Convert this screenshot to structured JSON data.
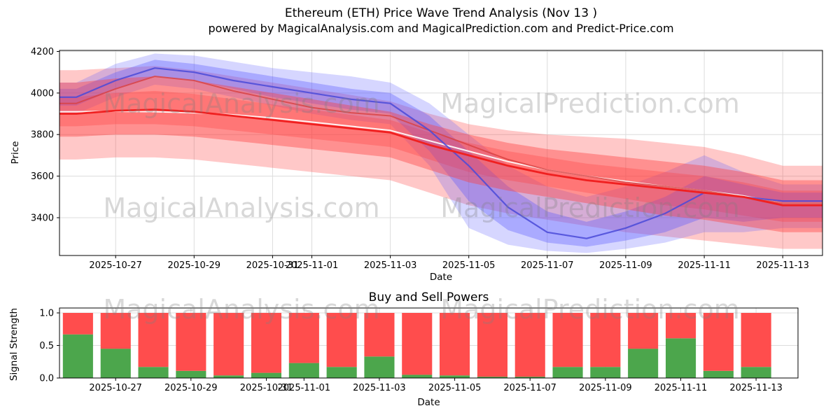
{
  "title": {
    "line1": "Ethereum (ETH) Price Wave Trend Analysis (Nov 13 )",
    "line2": "powered by MagicalAnalysis.com and MagicalPrediction.com and Predict-Price.com"
  },
  "watermarks": {
    "left_text": "MagicalAnalysis.com",
    "right_text": "MagicalPrediction.com"
  },
  "colors": {
    "grid": "#dcdcdc",
    "spine": "#000000",
    "band_red": "#ff3b3b",
    "band_blue": "#5a5aff",
    "line_red_main": "#f02020",
    "line_red_secondary": "#d84040",
    "line_blue": "#4a4ad8",
    "line_white": "#ffffff",
    "bar_green": "#4ca64c",
    "bar_red": "#ff4d4d"
  },
  "chart_data": [
    {
      "id": "price",
      "type": "area",
      "title": "",
      "xlabel": "Date",
      "ylabel": "Price",
      "ylim": [
        3218,
        4205
      ],
      "yticks": [
        3400,
        3600,
        3800,
        4000,
        4200
      ],
      "ytick_labels": [
        "3400",
        "3600",
        "3800",
        "4000",
        "4200"
      ],
      "xticks": [
        "2025-10-27",
        "2025-10-29",
        "2025-10-31",
        "2025-11-01",
        "2025-11-03",
        "2025-11-05",
        "2025-11-07",
        "2025-11-09",
        "2025-11-11",
        "2025-11-13"
      ],
      "dates": [
        "2025-10-26",
        "2025-10-27",
        "2025-10-28",
        "2025-10-29",
        "2025-10-30",
        "2025-10-31",
        "2025-11-01",
        "2025-11-02",
        "2025-11-03",
        "2025-11-04",
        "2025-11-05",
        "2025-11-06",
        "2025-11-07",
        "2025-11-08",
        "2025-11-09",
        "2025-11-10",
        "2025-11-11",
        "2025-11-12",
        "2025-11-13"
      ],
      "grid": true,
      "legend": "none",
      "bands": [
        {
          "name": "red-band-outer",
          "color": "#ff3b3b",
          "opacity": 0.28,
          "upper": [
            4110,
            4120,
            4130,
            4110,
            4080,
            4050,
            4020,
            3990,
            3960,
            3900,
            3850,
            3820,
            3800,
            3790,
            3780,
            3760,
            3740,
            3700,
            3650
          ],
          "lower": [
            3680,
            3690,
            3690,
            3680,
            3660,
            3640,
            3620,
            3600,
            3580,
            3520,
            3460,
            3420,
            3390,
            3360,
            3330,
            3310,
            3290,
            3270,
            3250
          ]
        },
        {
          "name": "blue-band-outer",
          "color": "#5a5aff",
          "opacity": 0.25,
          "upper": [
            4050,
            4140,
            4190,
            4180,
            4150,
            4120,
            4100,
            4080,
            4050,
            3950,
            3800,
            3650,
            3550,
            3500,
            3550,
            3620,
            3700,
            3620,
            3560
          ],
          "lower": [
            3900,
            3980,
            4040,
            4020,
            3980,
            3940,
            3900,
            3870,
            3850,
            3650,
            3350,
            3270,
            3240,
            3230,
            3250,
            3280,
            3330,
            3330,
            3350
          ]
        },
        {
          "name": "red-band-mid",
          "color": "#ff3b3b",
          "opacity": 0.3,
          "upper": [
            3980,
            4000,
            4010,
            3995,
            3970,
            3945,
            3920,
            3895,
            3870,
            3810,
            3760,
            3720,
            3690,
            3660,
            3640,
            3620,
            3600,
            3570,
            3530
          ],
          "lower": [
            3840,
            3850,
            3850,
            3840,
            3820,
            3800,
            3780,
            3760,
            3740,
            3680,
            3620,
            3580,
            3550,
            3520,
            3490,
            3460,
            3440,
            3410,
            3380
          ]
        },
        {
          "name": "blue-band-inner",
          "color": "#5a5aff",
          "opacity": 0.35,
          "upper": [
            4020,
            4100,
            4160,
            4140,
            4110,
            4080,
            4050,
            4020,
            4000,
            3890,
            3720,
            3550,
            3430,
            3380,
            3430,
            3500,
            3600,
            3560,
            3520
          ],
          "lower": [
            3940,
            4020,
            4080,
            4060,
            4020,
            3980,
            3950,
            3920,
            3900,
            3720,
            3480,
            3340,
            3280,
            3260,
            3290,
            3330,
            3400,
            3380,
            3400
          ]
        },
        {
          "name": "red-band-inner",
          "color": "#ff3b3b",
          "opacity": 0.4,
          "upper": [
            4050,
            4070,
            4080,
            4060,
            4030,
            4000,
            3970,
            3940,
            3910,
            3850,
            3800,
            3760,
            3730,
            3710,
            3690,
            3670,
            3650,
            3620,
            3580
          ],
          "lower": [
            3790,
            3800,
            3800,
            3790,
            3770,
            3750,
            3730,
            3710,
            3690,
            3630,
            3570,
            3530,
            3500,
            3470,
            3440,
            3410,
            3390,
            3360,
            3330
          ]
        }
      ],
      "lines": [
        {
          "name": "white-median-line",
          "color": "#ffffff",
          "width": 2,
          "opacity": 0.9,
          "values": [
            3910,
            3912,
            3910,
            3905,
            3895,
            3880,
            3860,
            3840,
            3820,
            3770,
            3720,
            3670,
            3630,
            3600,
            3575,
            3550,
            3530,
            3505,
            3470
          ]
        },
        {
          "name": "red-forecast-line",
          "color": "#d84040",
          "width": 2,
          "opacity": 0.8,
          "values": [
            3950,
            4020,
            4080,
            4060,
            4010,
            3970,
            3930,
            3905,
            3890,
            3820,
            3750,
            3680,
            3630,
            3600,
            3570,
            3550,
            3530,
            3500,
            3470
          ]
        },
        {
          "name": "blue-forecast-line",
          "color": "#4a4ad8",
          "width": 2.2,
          "opacity": 0.85,
          "values": [
            3980,
            4060,
            4120,
            4100,
            4060,
            4030,
            4000,
            3970,
            3950,
            3820,
            3650,
            3450,
            3330,
            3300,
            3350,
            3420,
            3520,
            3500,
            3480
          ]
        },
        {
          "name": "red-trend-line",
          "color": "#f02020",
          "width": 2.8,
          "opacity": 1,
          "values": [
            3900,
            3915,
            3920,
            3910,
            3890,
            3870,
            3850,
            3830,
            3810,
            3750,
            3700,
            3650,
            3610,
            3580,
            3560,
            3540,
            3520,
            3500,
            3460
          ]
        }
      ]
    },
    {
      "id": "power",
      "type": "bar",
      "stacked": true,
      "title": "Buy and Sell Powers",
      "xlabel": "Date",
      "ylabel": "Signal Strength",
      "ylim": [
        0,
        1.075
      ],
      "yticks": [
        0.0,
        0.5,
        1.0
      ],
      "ytick_labels": [
        "0.0",
        "0.5",
        "1.0"
      ],
      "xticks": [
        "2025-10-27",
        "2025-10-29",
        "2025-10-31",
        "2025-11-01",
        "2025-11-03",
        "2025-11-05",
        "2025-11-07",
        "2025-11-09",
        "2025-11-11",
        "2025-11-13"
      ],
      "categories": [
        "2025-10-26",
        "2025-10-27",
        "2025-10-28",
        "2025-10-29",
        "2025-10-30",
        "2025-10-31",
        "2025-11-01",
        "2025-11-02",
        "2025-11-03",
        "2025-11-04",
        "2025-11-05",
        "2025-11-06",
        "2025-11-07",
        "2025-11-08",
        "2025-11-09",
        "2025-11-10",
        "2025-11-11",
        "2025-11-12",
        "2025-11-13"
      ],
      "grid": true,
      "legend": "none",
      "series": [
        {
          "name": "Buy Power",
          "color": "#4ca64c",
          "values": [
            0.67,
            0.45,
            0.17,
            0.11,
            0.04,
            0.08,
            0.23,
            0.17,
            0.33,
            0.05,
            0.04,
            0.02,
            0.02,
            0.17,
            0.17,
            0.45,
            0.61,
            0.11,
            0.17
          ]
        },
        {
          "name": "Sell Power",
          "color": "#ff4d4d",
          "values": [
            0.33,
            0.55,
            0.83,
            0.89,
            0.96,
            0.92,
            0.77,
            0.83,
            0.67,
            0.95,
            0.96,
            0.98,
            0.98,
            0.83,
            0.83,
            0.55,
            0.39,
            0.89,
            0.83
          ]
        }
      ]
    }
  ]
}
